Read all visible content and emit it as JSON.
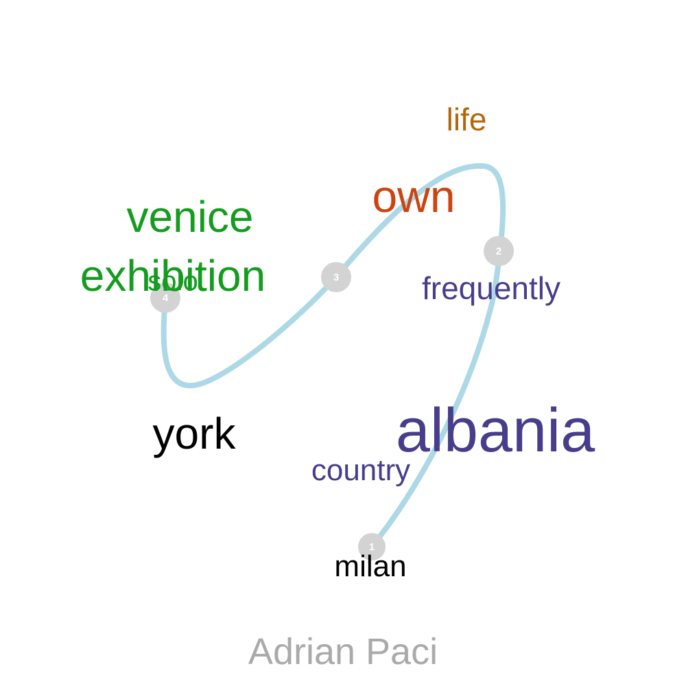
{
  "title": "Adrian Paci",
  "colors": {
    "curve": "#add8e6",
    "marker": "#d3d3d3",
    "marker_text": "#ffffff",
    "title": "#aaaaaa"
  },
  "markers": [
    "1",
    "2",
    "3",
    "4"
  ],
  "words": {
    "life": {
      "text": "life",
      "color": "#b3660c"
    },
    "own": {
      "text": "own",
      "color": "#cc4410"
    },
    "venice": {
      "text": "venice",
      "color": "#139c1e"
    },
    "exhibition": {
      "text": "exhibition",
      "color": "#139c1e"
    },
    "solo": {
      "text": "solo",
      "color": "#139c1e"
    },
    "frequently": {
      "text": "frequently",
      "color": "#483d8b"
    },
    "york": {
      "text": "york",
      "color": "#000000"
    },
    "albania": {
      "text": "albania",
      "color": "#483d8b"
    },
    "country": {
      "text": "country",
      "color": "#483d8b"
    },
    "milan": {
      "text": "milan",
      "color": "#000000"
    }
  }
}
